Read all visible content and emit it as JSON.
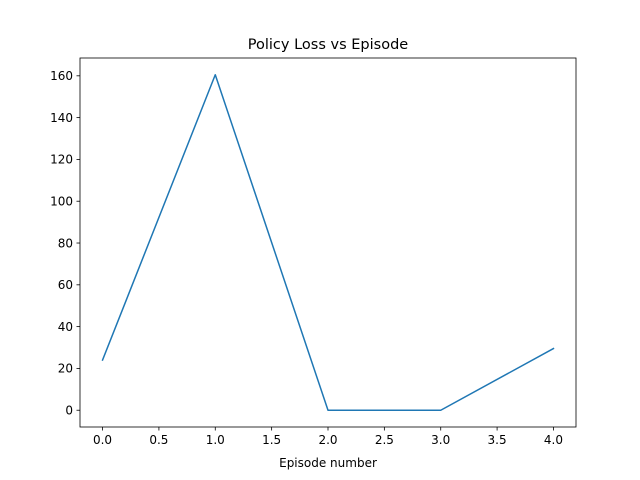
{
  "chart_data": {
    "type": "line",
    "title": "Policy Loss vs Episode",
    "xlabel": "Episode number",
    "ylabel": "",
    "x": [
      0,
      1,
      2,
      3,
      4
    ],
    "series": [
      {
        "values": [
          24,
          160.5,
          0,
          0,
          29.5
        ],
        "color": "#1f77b4"
      }
    ],
    "xlim": [
      -0.2,
      4.2
    ],
    "ylim": [
      -8.025,
      168.525
    ],
    "xticks": [
      0.0,
      0.5,
      1.0,
      1.5,
      2.0,
      2.5,
      3.0,
      3.5,
      4.0
    ],
    "xtick_labels": [
      "0.0",
      "0.5",
      "1.0",
      "1.5",
      "2.0",
      "2.5",
      "3.0",
      "3.5",
      "4.0"
    ],
    "yticks": [
      0,
      20,
      40,
      60,
      80,
      100,
      120,
      140,
      160
    ],
    "ytick_labels": [
      "0",
      "20",
      "40",
      "60",
      "80",
      "100",
      "120",
      "140",
      "160"
    ],
    "grid": false,
    "legend": false
  }
}
